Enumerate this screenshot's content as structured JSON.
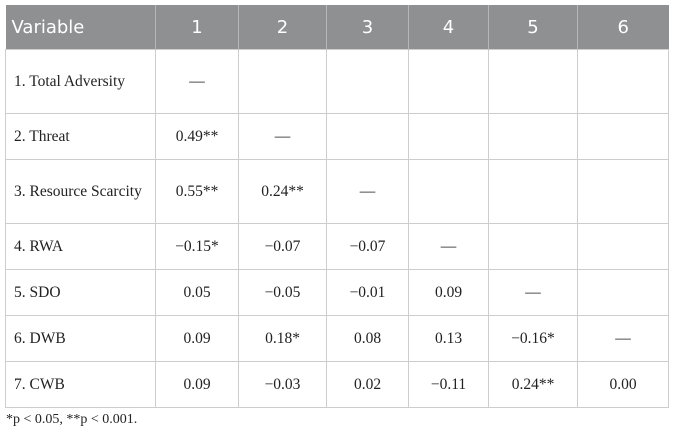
{
  "table": {
    "header": [
      "Variable",
      "1",
      "2",
      "3",
      "4",
      "5",
      "6"
    ],
    "rows": [
      {
        "label": "1. Total Adversity",
        "cells": [
          "—"
        ]
      },
      {
        "label": "2. Threat",
        "cells": [
          "0.49**",
          "—"
        ]
      },
      {
        "label": "3. Resource Scarcity",
        "cells": [
          "0.55**",
          "0.24**",
          "—"
        ]
      },
      {
        "label": "4. RWA",
        "cells": [
          "−0.15*",
          "−0.07",
          "−0.07",
          "—"
        ]
      },
      {
        "label": "5. SDO",
        "cells": [
          "0.05",
          "−0.05",
          "−0.01",
          "0.09",
          "—"
        ]
      },
      {
        "label": "6. DWB",
        "cells": [
          "0.09",
          "0.18*",
          "0.08",
          "0.13",
          "−0.16*",
          "—"
        ]
      },
      {
        "label": "7. CWB",
        "cells": [
          "0.09",
          "−0.03",
          "0.02",
          "−0.11",
          "0.24**",
          "0.00"
        ]
      }
    ],
    "footnote": "*p < 0.05, **p < 0.001."
  }
}
